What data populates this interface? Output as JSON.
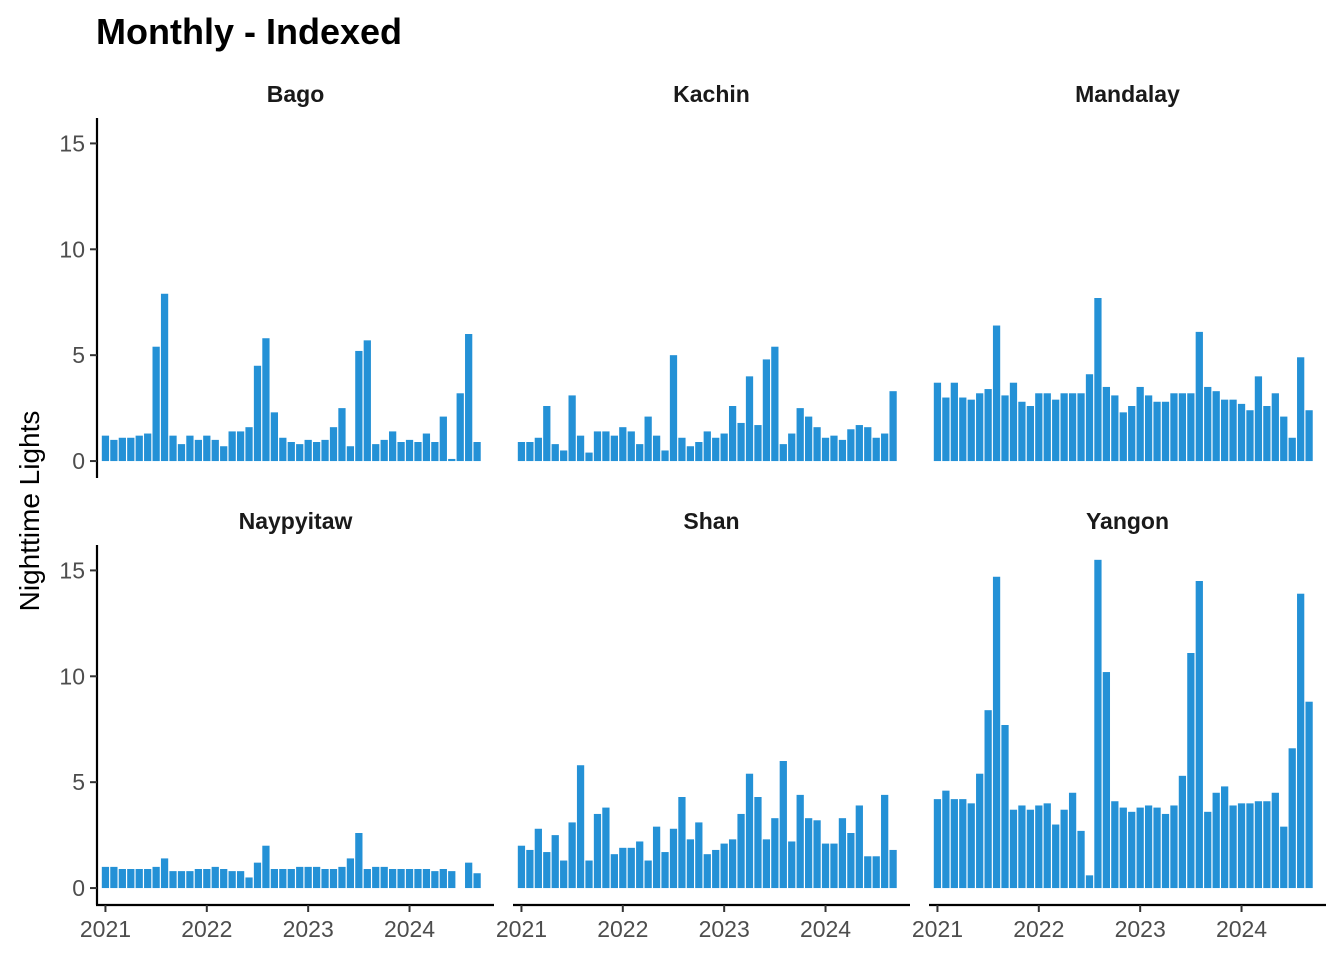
{
  "chart_data": {
    "type": "bar",
    "title": "Monthly - Indexed",
    "xlabel": "",
    "ylabel": "Nighttime Lights",
    "ylim": [
      -0.8,
      16.2
    ],
    "yticks": [
      0,
      5,
      10,
      15
    ],
    "xlim": [
      "2020-12",
      "2024-11"
    ],
    "xticks": [
      "2021",
      "2022",
      "2023",
      "2024"
    ],
    "x_start": "2021-01",
    "x_end": "2024-09",
    "grid": false,
    "legend": "none",
    "bar_color": "#2491d6",
    "facets": [
      {
        "name": "Bago",
        "values": [
          1.2,
          1.0,
          1.1,
          1.1,
          1.2,
          1.3,
          5.4,
          7.9,
          1.2,
          0.8,
          1.2,
          1.0,
          1.2,
          1.0,
          0.7,
          1.4,
          1.4,
          1.6,
          4.5,
          5.8,
          2.3,
          1.1,
          0.9,
          0.8,
          1.0,
          0.9,
          1.0,
          1.6,
          2.5,
          0.7,
          5.2,
          5.7,
          0.8,
          1.0,
          1.4,
          0.9,
          1.0,
          0.9,
          1.3,
          0.9,
          2.1,
          0.1,
          3.2,
          6.0,
          0.9
        ]
      },
      {
        "name": "Kachin",
        "values": [
          0.9,
          0.9,
          1.1,
          2.6,
          0.8,
          0.5,
          3.1,
          1.2,
          0.4,
          1.4,
          1.4,
          1.2,
          1.6,
          1.4,
          0.8,
          2.1,
          1.2,
          0.5,
          5.0,
          1.1,
          0.7,
          0.9,
          1.4,
          1.1,
          1.3,
          2.6,
          1.8,
          4.0,
          1.7,
          4.8,
          5.4,
          0.8,
          1.3,
          2.5,
          2.1,
          1.6,
          1.1,
          1.2,
          1.0,
          1.5,
          1.7,
          1.6,
          1.1,
          1.3,
          3.3
        ]
      },
      {
        "name": "Mandalay",
        "values": [
          3.7,
          3.0,
          3.7,
          3.0,
          2.9,
          3.2,
          3.4,
          6.4,
          3.1,
          3.7,
          2.8,
          2.6,
          3.2,
          3.2,
          2.9,
          3.2,
          3.2,
          3.2,
          4.1,
          7.7,
          3.5,
          3.1,
          2.3,
          2.6,
          3.5,
          3.1,
          2.8,
          2.8,
          3.2,
          3.2,
          3.2,
          6.1,
          3.5,
          3.3,
          2.9,
          2.9,
          2.7,
          2.4,
          4.0,
          2.6,
          3.2,
          2.1,
          1.1,
          4.9,
          2.4
        ]
      },
      {
        "name": "Naypyitaw",
        "values": [
          1.0,
          1.0,
          0.9,
          0.9,
          0.9,
          0.9,
          1.0,
          1.4,
          0.8,
          0.8,
          0.8,
          0.9,
          0.9,
          1.0,
          0.9,
          0.8,
          0.8,
          0.5,
          1.2,
          2.0,
          0.9,
          0.9,
          0.9,
          1.0,
          1.0,
          1.0,
          0.9,
          0.9,
          1.0,
          1.4,
          2.6,
          0.9,
          1.0,
          1.0,
          0.9,
          0.9,
          0.9,
          0.9,
          0.9,
          0.8,
          0.9,
          0.8,
          0.0,
          1.2,
          0.7
        ]
      },
      {
        "name": "Shan",
        "values": [
          2.0,
          1.8,
          2.8,
          1.7,
          2.5,
          1.3,
          3.1,
          5.8,
          1.3,
          3.5,
          3.8,
          1.6,
          1.9,
          1.9,
          2.2,
          1.3,
          2.9,
          1.7,
          2.8,
          4.3,
          2.3,
          3.1,
          1.6,
          1.8,
          2.1,
          2.3,
          3.5,
          5.4,
          4.3,
          2.3,
          3.3,
          6.0,
          2.2,
          4.4,
          3.3,
          3.2,
          2.1,
          2.1,
          3.3,
          2.6,
          3.9,
          1.5,
          1.5,
          4.4,
          1.8
        ]
      },
      {
        "name": "Yangon",
        "values": [
          4.2,
          4.6,
          4.2,
          4.2,
          4.0,
          5.4,
          8.4,
          14.7,
          7.7,
          3.7,
          3.9,
          3.7,
          3.9,
          4.0,
          3.0,
          3.7,
          4.5,
          2.7,
          0.6,
          15.5,
          10.2,
          4.1,
          3.8,
          3.6,
          3.8,
          3.9,
          3.8,
          3.5,
          3.9,
          5.3,
          11.1,
          14.5,
          3.6,
          4.5,
          4.8,
          3.9,
          4.0,
          4.0,
          4.1,
          4.1,
          4.5,
          2.9,
          6.6,
          13.9,
          8.8
        ]
      }
    ]
  }
}
